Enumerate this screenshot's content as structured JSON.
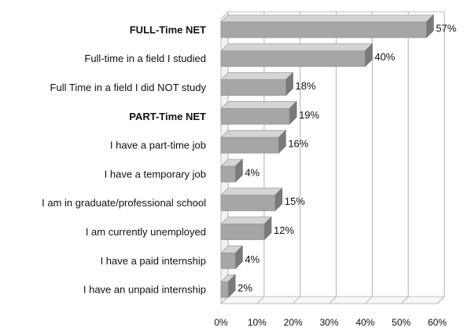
{
  "chart_data": {
    "type": "bar",
    "orientation": "horizontal",
    "categories": [
      "FULL-Time NET",
      "Full-time in a field I studied",
      "Full Time in a field I did NOT study",
      "PART-Time NET",
      "I have a part-time job",
      "I have a temporary job",
      "I am in graduate/professional school",
      "I am currently unemployed",
      "I have a paid internship",
      "I have an unpaid internship"
    ],
    "bold_categories": [
      "FULL-Time NET",
      "PART-Time NET"
    ],
    "values": [
      57,
      40,
      18,
      19,
      16,
      4,
      15,
      12,
      4,
      2
    ],
    "value_labels": [
      "57%",
      "40%",
      "18%",
      "19%",
      "16%",
      "4%",
      "15%",
      "12%",
      "4%",
      "2%"
    ],
    "xlim": [
      0,
      60
    ],
    "x_ticks": [
      0,
      10,
      20,
      30,
      40,
      50,
      60
    ],
    "x_tick_labels": [
      "0%",
      "10%",
      "20%",
      "30%",
      "40%",
      "50%",
      "60%"
    ],
    "grid": true,
    "style": "3d",
    "colors": {
      "bar_front": "#a6a6a6",
      "bar_top": "#d4d4d4",
      "bar_side": "#7a7a7a",
      "grid": "#bfbfbf",
      "wall": "#ffffff"
    }
  }
}
